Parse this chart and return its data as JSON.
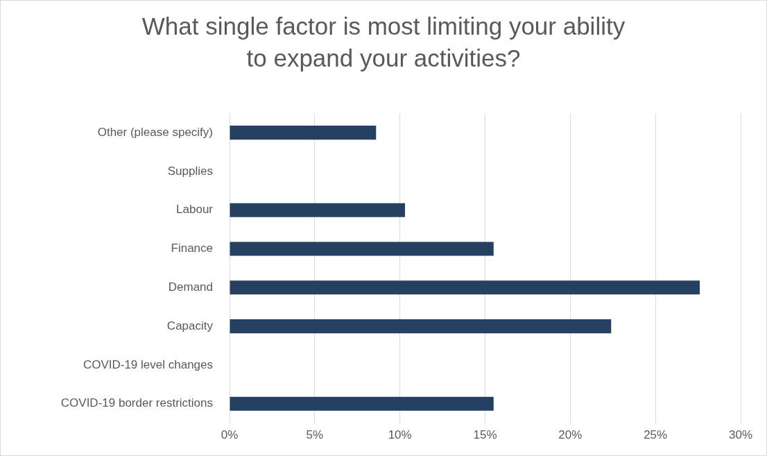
{
  "chart_data": {
    "type": "bar",
    "orientation": "horizontal",
    "title": "What single factor is most limiting your ability to expand your activities?",
    "categories": [
      "Other (please specify)",
      "Supplies",
      "Labour",
      "Finance",
      "Demand",
      "Capacity",
      "COVID-19 level changes",
      "COVID-19 border restrictions"
    ],
    "values": [
      8.6,
      0,
      10.3,
      15.5,
      27.6,
      22.4,
      0,
      15.5
    ],
    "color": "#264061",
    "xlim": [
      0,
      30
    ],
    "xticks": [
      {
        "value": 0,
        "label": "0%"
      },
      {
        "value": 5,
        "label": "5%"
      },
      {
        "value": 10,
        "label": "10%"
      },
      {
        "value": 15,
        "label": "15%"
      },
      {
        "value": 20,
        "label": "20%"
      },
      {
        "value": 25,
        "label": "25%"
      },
      {
        "value": 30,
        "label": "30%"
      }
    ],
    "grid": "x",
    "legend": false
  }
}
